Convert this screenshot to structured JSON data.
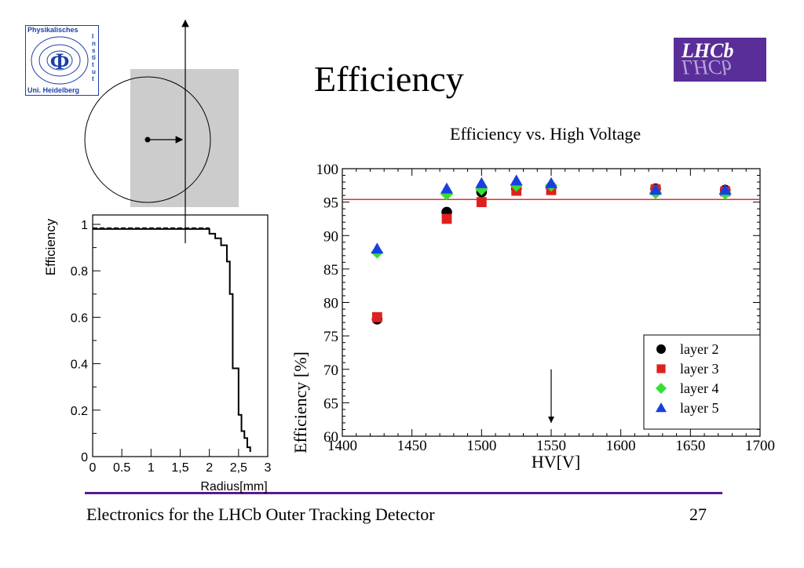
{
  "slide": {
    "title": "Efficiency",
    "footer": "Electronics for the LHCb Outer Tracking Detector",
    "page_number": "27"
  },
  "logos": {
    "left_top_text": "Physikalisches",
    "left_side_text": "Institut",
    "left_bottom_text": "Uni. Heidelberg",
    "left_symbol": "Φ",
    "right_text": "LHCb",
    "brand_color": "#5a2e99"
  },
  "chart_data": [
    {
      "type": "line",
      "title": "",
      "xlabel": "Radius[mm]",
      "ylabel": "Efficiency",
      "xlim": [
        0,
        3
      ],
      "ylim": [
        0,
        1
      ],
      "xticks": [
        "0",
        "0.5",
        "1",
        "1,5",
        "2",
        "2,5",
        "3"
      ],
      "yticks": [
        "0",
        "0.2",
        "0.4",
        "0.6",
        "0.8",
        "1"
      ],
      "series": [
        {
          "x": [
            0,
            0.3,
            0.6,
            0.9,
            1.2,
            1.5,
            1.8,
            2.0,
            2.1,
            2.2,
            2.3,
            2.35,
            2.4,
            2.45,
            2.5,
            2.55,
            2.6,
            2.65,
            2.7
          ],
          "y": [
            0.98,
            0.98,
            0.98,
            0.98,
            0.98,
            0.98,
            0.98,
            0.96,
            0.94,
            0.91,
            0.84,
            0.7,
            0.38,
            0.38,
            0.18,
            0.11,
            0.08,
            0.04,
            0.02
          ]
        }
      ]
    },
    {
      "type": "scatter",
      "title": "Efficiency vs. High Voltage",
      "xlabel": "HV[V]",
      "ylabel": "Efficiency [%]",
      "xlim": [
        1400,
        1700
      ],
      "ylim": [
        60,
        100
      ],
      "xticks": [
        "1400",
        "1450",
        "1500",
        "1550",
        "1600",
        "1650",
        "1700"
      ],
      "yticks": [
        "60",
        "65",
        "70",
        "75",
        "80",
        "85",
        "90",
        "95",
        "100"
      ],
      "reference_line": 95.4,
      "reference_color": "#e03030",
      "arrow_at": 1550,
      "legend_position": "bottom-right",
      "series": [
        {
          "name": "layer 2",
          "marker": "circle",
          "color": "#000000",
          "x": [
            1425,
            1475,
            1500,
            1525,
            1550,
            1625,
            1675
          ],
          "y": [
            77.5,
            93.5,
            96.5,
            97.0,
            97.2,
            97.0,
            96.8
          ]
        },
        {
          "name": "layer 3",
          "marker": "square",
          "color": "#e02020",
          "x": [
            1425,
            1475,
            1500,
            1525,
            1550,
            1625,
            1675
          ],
          "y": [
            77.8,
            92.5,
            95.0,
            96.7,
            96.8,
            96.9,
            96.6
          ]
        },
        {
          "name": "layer 4",
          "marker": "diamond",
          "color": "#33e033",
          "x": [
            1425,
            1475,
            1500,
            1525,
            1550,
            1625,
            1675
          ],
          "y": [
            87.5,
            96.2,
            96.9,
            97.5,
            97.5,
            96.4,
            96.3
          ]
        },
        {
          "name": "layer 5",
          "marker": "triangle",
          "color": "#1a3fe0",
          "x": [
            1425,
            1475,
            1500,
            1525,
            1550,
            1625,
            1675
          ],
          "y": [
            88.0,
            97.0,
            97.8,
            98.2,
            97.8,
            96.8,
            96.8
          ]
        }
      ]
    }
  ]
}
